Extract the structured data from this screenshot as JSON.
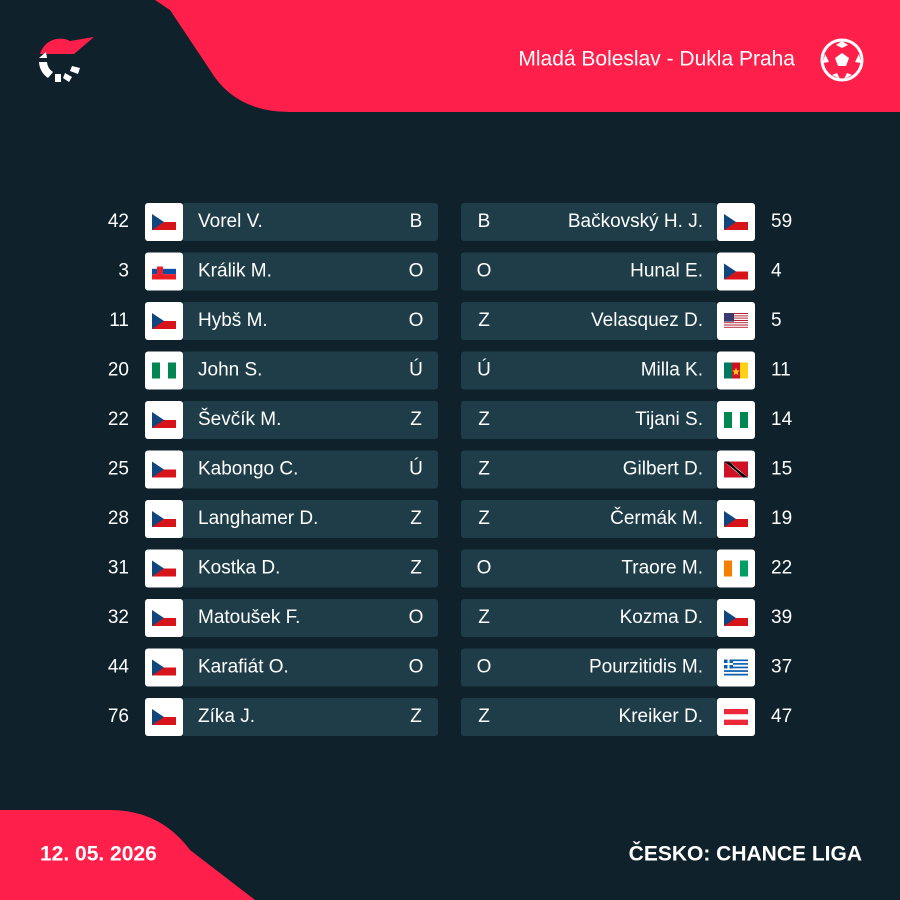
{
  "header": {
    "match": "Mladá Boleslav - Dukla Praha"
  },
  "lineups": {
    "home": {
      "players": [
        {
          "number": 42,
          "name": "Vorel V.",
          "position": "B"
        },
        {
          "number": 3,
          "name": "Králik M.",
          "position": "O"
        },
        {
          "number": 11,
          "name": "Hybš M.",
          "position": "O"
        },
        {
          "number": 20,
          "name": "John S.",
          "position": "Ú"
        },
        {
          "number": 22,
          "name": "Ševčík M.",
          "position": "Z"
        },
        {
          "number": 25,
          "name": "Kabongo C.",
          "position": "Ú"
        },
        {
          "number": 28,
          "name": "Langhamer D.",
          "position": "Z"
        },
        {
          "number": 31,
          "name": "Kostka D.",
          "position": "Z"
        },
        {
          "number": 32,
          "name": "Matoušek F.",
          "position": "O"
        },
        {
          "number": 44,
          "name": "Karafiát O.",
          "position": "O"
        },
        {
          "number": 76,
          "name": "Zíka J.",
          "position": "Z"
        }
      ]
    },
    "away": {
      "players": [
        {
          "number": 59,
          "name": "Bačkovský H. J.",
          "position": "B"
        },
        {
          "number": 4,
          "name": "Hunal E.",
          "position": "O"
        },
        {
          "number": 5,
          "name": "Velasquez D.",
          "position": "Z"
        },
        {
          "number": 11,
          "name": "Milla K.",
          "position": "Ú"
        },
        {
          "number": 14,
          "name": "Tijani S.",
          "position": "Z"
        },
        {
          "number": 15,
          "name": "Gilbert D.",
          "position": "Z"
        },
        {
          "number": 19,
          "name": "Čermák M.",
          "position": "Z"
        },
        {
          "number": 22,
          "name": "Traore M.",
          "position": "O"
        },
        {
          "number": 39,
          "name": "Kozma D.",
          "position": "Z"
        },
        {
          "number": 37,
          "name": "Pourzitidis M.",
          "position": "O"
        },
        {
          "number": 47,
          "name": "Kreiker D.",
          "position": "Z"
        }
      ]
    }
  },
  "footer": {
    "date": "12. 05. 2026",
    "league": "ČESKO: CHANCE LIGA"
  }
}
